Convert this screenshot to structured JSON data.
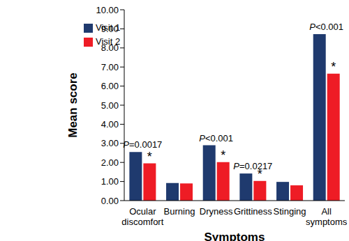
{
  "chart_data": {
    "type": "bar",
    "x_label": "Symptoms",
    "y_label": "Mean score",
    "categories": [
      "Ocular discomfort",
      "Burning",
      "Dryness",
      "Grittiness",
      "Stinging",
      "All symptoms"
    ],
    "series": [
      {
        "name": "Visit 1",
        "color": "#1f3a6e",
        "values": [
          2.55,
          0.92,
          2.9,
          1.42,
          0.98,
          8.72
        ]
      },
      {
        "name": "Visit 2",
        "color": "#ee1c25",
        "values": [
          1.95,
          0.9,
          2.02,
          1.03,
          0.8,
          6.65
        ]
      }
    ],
    "ylim": [
      0,
      10
    ],
    "yticks": [
      {
        "value": 0,
        "label": "0.00"
      },
      {
        "value": 1,
        "label": "1.00"
      },
      {
        "value": 2,
        "label": "2.00"
      },
      {
        "value": 3,
        "label": "3.00"
      },
      {
        "value": 4,
        "label": "4.00"
      },
      {
        "value": 5,
        "label": "5.00"
      },
      {
        "value": 6,
        "label": "6.00"
      },
      {
        "value": 7,
        "label": "7.00"
      },
      {
        "value": 8,
        "label": "8.00"
      },
      {
        "value": 9,
        "label": "9.00"
      },
      {
        "value": 10,
        "label": "10.00"
      }
    ],
    "grid": false,
    "legend": "upper left",
    "annotations": [
      {
        "category": "Ocular discomfort",
        "text": "P=0.0017"
      },
      {
        "category": "Dryness",
        "text": "P<0.001"
      },
      {
        "category": "Grittiness",
        "text": "P=0.0217"
      },
      {
        "category": "All symptoms",
        "text": "P<0.001"
      },
      {
        "category": "Ocular discomfort",
        "series": "Visit 2",
        "text": "*"
      },
      {
        "category": "Dryness",
        "series": "Visit 2",
        "text": "*"
      },
      {
        "category": "Grittiness",
        "series": "Visit 2",
        "text": "*"
      },
      {
        "category": "All symptoms",
        "series": "Visit 2",
        "text": "*"
      }
    ]
  }
}
